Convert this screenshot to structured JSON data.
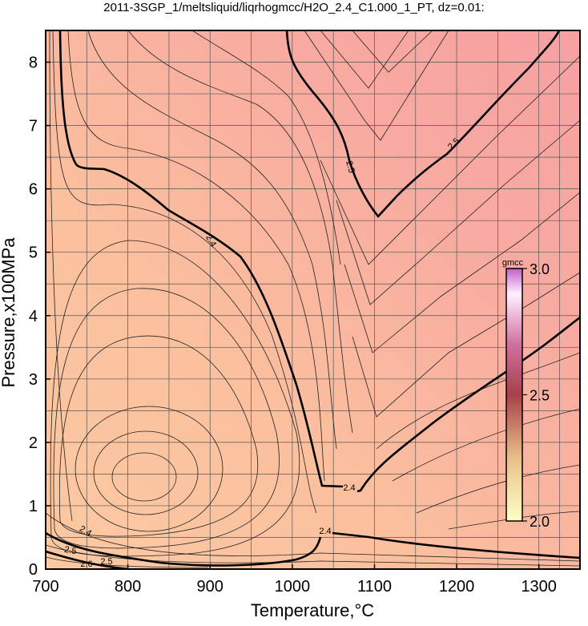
{
  "chart_data": {
    "type": "contour",
    "title": "2011-3SGP_1/meltsliquid/liqrhogmcc/H2O_2.4_C1.000_1_PT, dz=0.01:",
    "x_label": "Temperature,°C",
    "y_label": "Pressure,x100MPa",
    "xlim": [
      700,
      1350
    ],
    "ylim": [
      0,
      8.5
    ],
    "xticks": [
      700,
      800,
      900,
      1000,
      1100,
      1200,
      1300
    ],
    "yticks": [
      0,
      1,
      2,
      3,
      4,
      5,
      6,
      7,
      8
    ],
    "grid": true,
    "colorbar": {
      "label": "gmcc",
      "lim": [
        2.0,
        3.0
      ],
      "ticks": [
        {
          "value": 2.0,
          "label": "2.0"
        },
        {
          "value": 2.5,
          "label": "2.5"
        },
        {
          "value": 3.0,
          "label": "3.0"
        }
      ]
    },
    "contour_labels": [
      2.4,
      2.5,
      2.5,
      2.4,
      2.4,
      2.4,
      2.5,
      2.6,
      2.5
    ]
  }
}
